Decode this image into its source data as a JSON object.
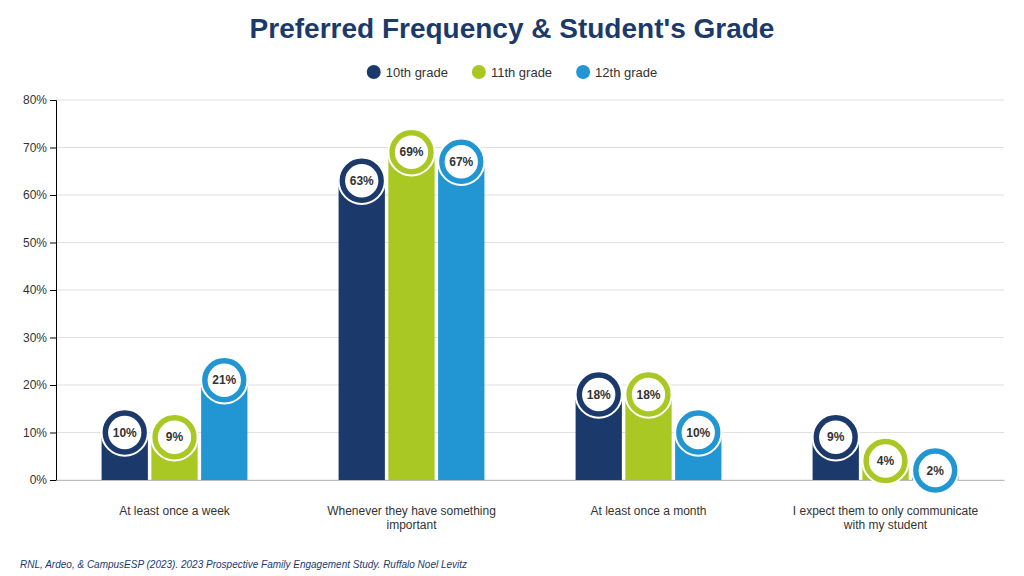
{
  "chart_data": {
    "type": "bar",
    "title": "Preferred Frequency & Student's Grade",
    "categories": [
      "At least once a week",
      "Whenever they have something\nimportant",
      "At least once a month",
      "I expect them to only communicate\nwith my student"
    ],
    "series": [
      {
        "name": "10th grade",
        "color": "#1b3a6b",
        "values": [
          10,
          63,
          18,
          9
        ],
        "value_labels": [
          "10%",
          "63%",
          "18%",
          "9%"
        ]
      },
      {
        "name": "11th grade",
        "color": "#aac823",
        "values": [
          9,
          69,
          18,
          4
        ],
        "value_labels": [
          "9%",
          "69%",
          "18%",
          "4%"
        ]
      },
      {
        "name": "12th grade",
        "color": "#2196d3",
        "values": [
          21,
          67,
          10,
          2
        ],
        "value_labels": [
          "21%",
          "67%",
          "10%",
          "2%"
        ]
      }
    ],
    "ylim": [
      0,
      80
    ],
    "yticks": [
      {
        "value": 0,
        "label": "0%"
      },
      {
        "value": 10,
        "label": "10%"
      },
      {
        "value": 20,
        "label": "20%"
      },
      {
        "value": 30,
        "label": "30%"
      },
      {
        "value": 40,
        "label": "40%"
      },
      {
        "value": 50,
        "label": "50%"
      },
      {
        "value": 60,
        "label": "60%"
      },
      {
        "value": 70,
        "label": "70%"
      },
      {
        "value": 80,
        "label": "80%"
      }
    ],
    "grid": true,
    "legend": "top",
    "data_labels": true,
    "annotations": [
      "RNL, Ardeo, & CampusESP (2023). 2023 Prospective Family Engagement Study. Ruffalo Noel Levitz"
    ]
  }
}
